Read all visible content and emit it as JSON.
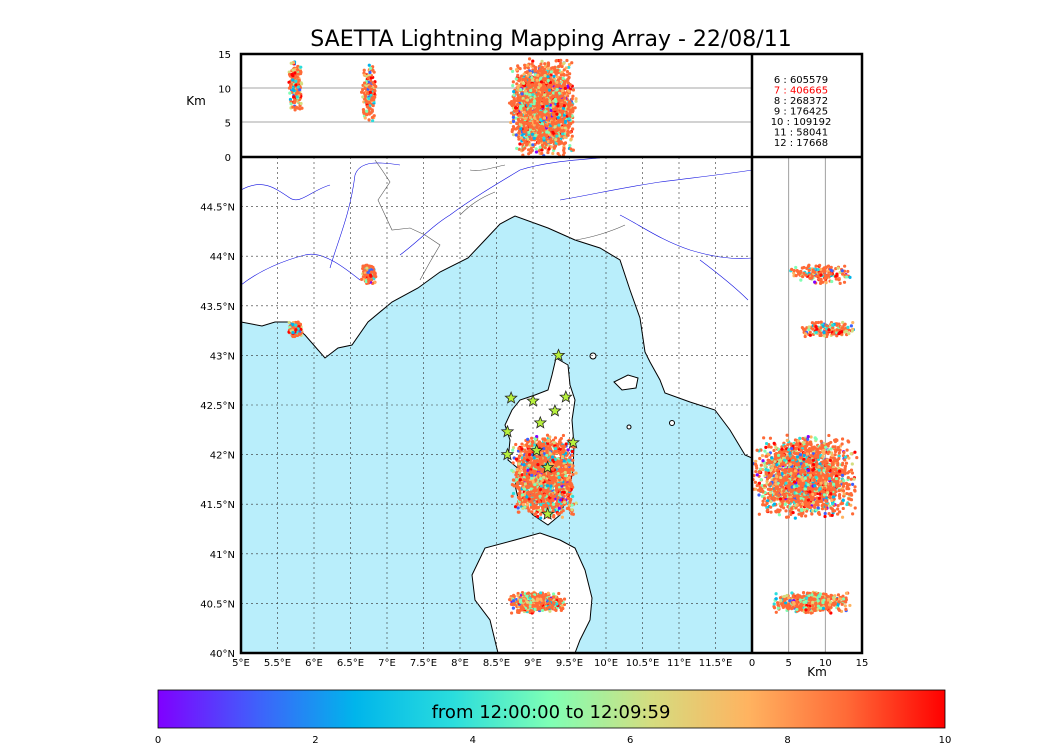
{
  "chart_data": {
    "type": "scatter",
    "title": "SAETTA Lightning Mapping Array - 22/08/11",
    "altitude_panel": {
      "ylabel": "Km",
      "yticks": [
        "0",
        "5",
        "10",
        "15"
      ],
      "ylim": [
        0,
        15
      ]
    },
    "side_panel": {
      "xlabel": "Km",
      "xticks": [
        "0",
        "5",
        "10",
        "15"
      ],
      "xlim": [
        0,
        15
      ]
    },
    "map": {
      "xlim": [
        5.0,
        12.0
      ],
      "ylim": [
        40.0,
        45.0
      ],
      "xticks": [
        "5°E",
        "5.5°E",
        "6°E",
        "6.5°E",
        "7°E",
        "7.5°E",
        "8°E",
        "8.5°E",
        "9°E",
        "9.5°E",
        "10°E",
        "10.5°E",
        "11°E",
        "11.5°E"
      ],
      "yticks": [
        "40°N",
        "40.5°N",
        "41°N",
        "41.5°N",
        "42°N",
        "42.5°N",
        "43°N",
        "43.5°N",
        "44°N",
        "44.5°N"
      ],
      "grid": true,
      "sea_color": "#b9eefb"
    },
    "station_counts": [
      {
        "station": "6",
        "count": "605579",
        "highlight": false
      },
      {
        "station": "7",
        "count": "406665",
        "highlight": true
      },
      {
        "station": "8",
        "count": "268372",
        "highlight": false
      },
      {
        "station": "9",
        "count": "176425",
        "highlight": false
      },
      {
        "station": "10",
        "count": "109192",
        "highlight": false
      },
      {
        "station": "11",
        "count": "58041",
        "highlight": false
      },
      {
        "station": "12",
        "count": "17668",
        "highlight": false
      }
    ],
    "stations": [
      {
        "lon": 9.35,
        "lat": 43.0
      },
      {
        "lon": 8.7,
        "lat": 42.57
      },
      {
        "lon": 9.0,
        "lat": 42.54
      },
      {
        "lon": 9.45,
        "lat": 42.58
      },
      {
        "lon": 9.3,
        "lat": 42.44
      },
      {
        "lon": 9.1,
        "lat": 42.32
      },
      {
        "lon": 8.65,
        "lat": 42.23
      },
      {
        "lon": 9.55,
        "lat": 42.12
      },
      {
        "lon": 8.65,
        "lat": 42.0
      },
      {
        "lon": 9.05,
        "lat": 42.04
      },
      {
        "lon": 9.2,
        "lat": 41.87
      },
      {
        "lon": 9.2,
        "lat": 41.4
      }
    ],
    "source_clusters": [
      {
        "lon_min": 5.65,
        "lon_max": 5.85,
        "lat_min": 43.18,
        "lat_max": 43.35,
        "alt_min": 6.5,
        "alt_max": 14.0
      },
      {
        "lon_min": 6.65,
        "lon_max": 6.85,
        "lat_min": 43.72,
        "lat_max": 43.92,
        "alt_min": 5.0,
        "alt_max": 14.0
      },
      {
        "lon_min": 8.7,
        "lon_max": 9.6,
        "lat_min": 41.35,
        "lat_max": 42.2,
        "alt_min": 0.0,
        "alt_max": 14.5
      },
      {
        "lon_min": 8.65,
        "lon_max": 9.45,
        "lat_min": 40.4,
        "lat_max": 40.62,
        "alt_min": 2.5,
        "alt_max": 13.5
      }
    ],
    "colorbar": {
      "label": "from 12:00:00 to 12:09:59",
      "ticks": [
        "0",
        "2",
        "4",
        "6",
        "8",
        "10"
      ],
      "range": [
        0,
        10
      ],
      "colors": [
        "#8000ff",
        "#4060fb",
        "#00b5eb",
        "#2adddd",
        "#80ffb4",
        "#d4dd80",
        "#ffb360",
        "#ff6a37",
        "#ff0000"
      ]
    }
  }
}
